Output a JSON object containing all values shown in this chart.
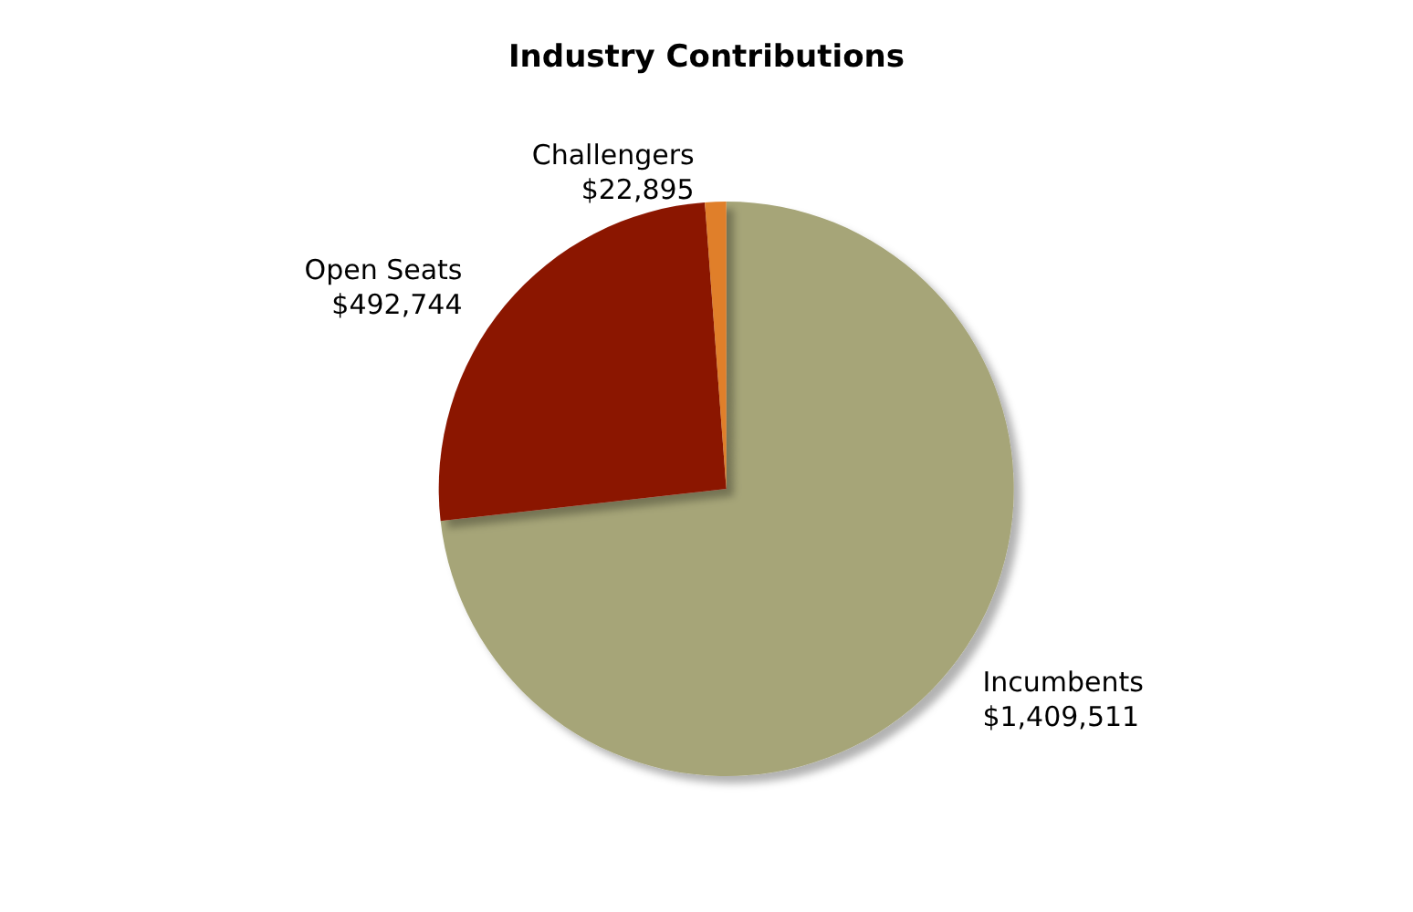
{
  "chart_data": {
    "type": "pie",
    "title": "Industry Contributions",
    "categories": [
      "Incumbents",
      "Open Seats",
      "Challengers"
    ],
    "values": [
      1409511,
      492744,
      22895
    ],
    "colors": [
      "#a6a578",
      "#8b1500",
      "#e07f2a"
    ],
    "value_labels": [
      "$1,409,511",
      "$492,744",
      "$22,895"
    ]
  }
}
